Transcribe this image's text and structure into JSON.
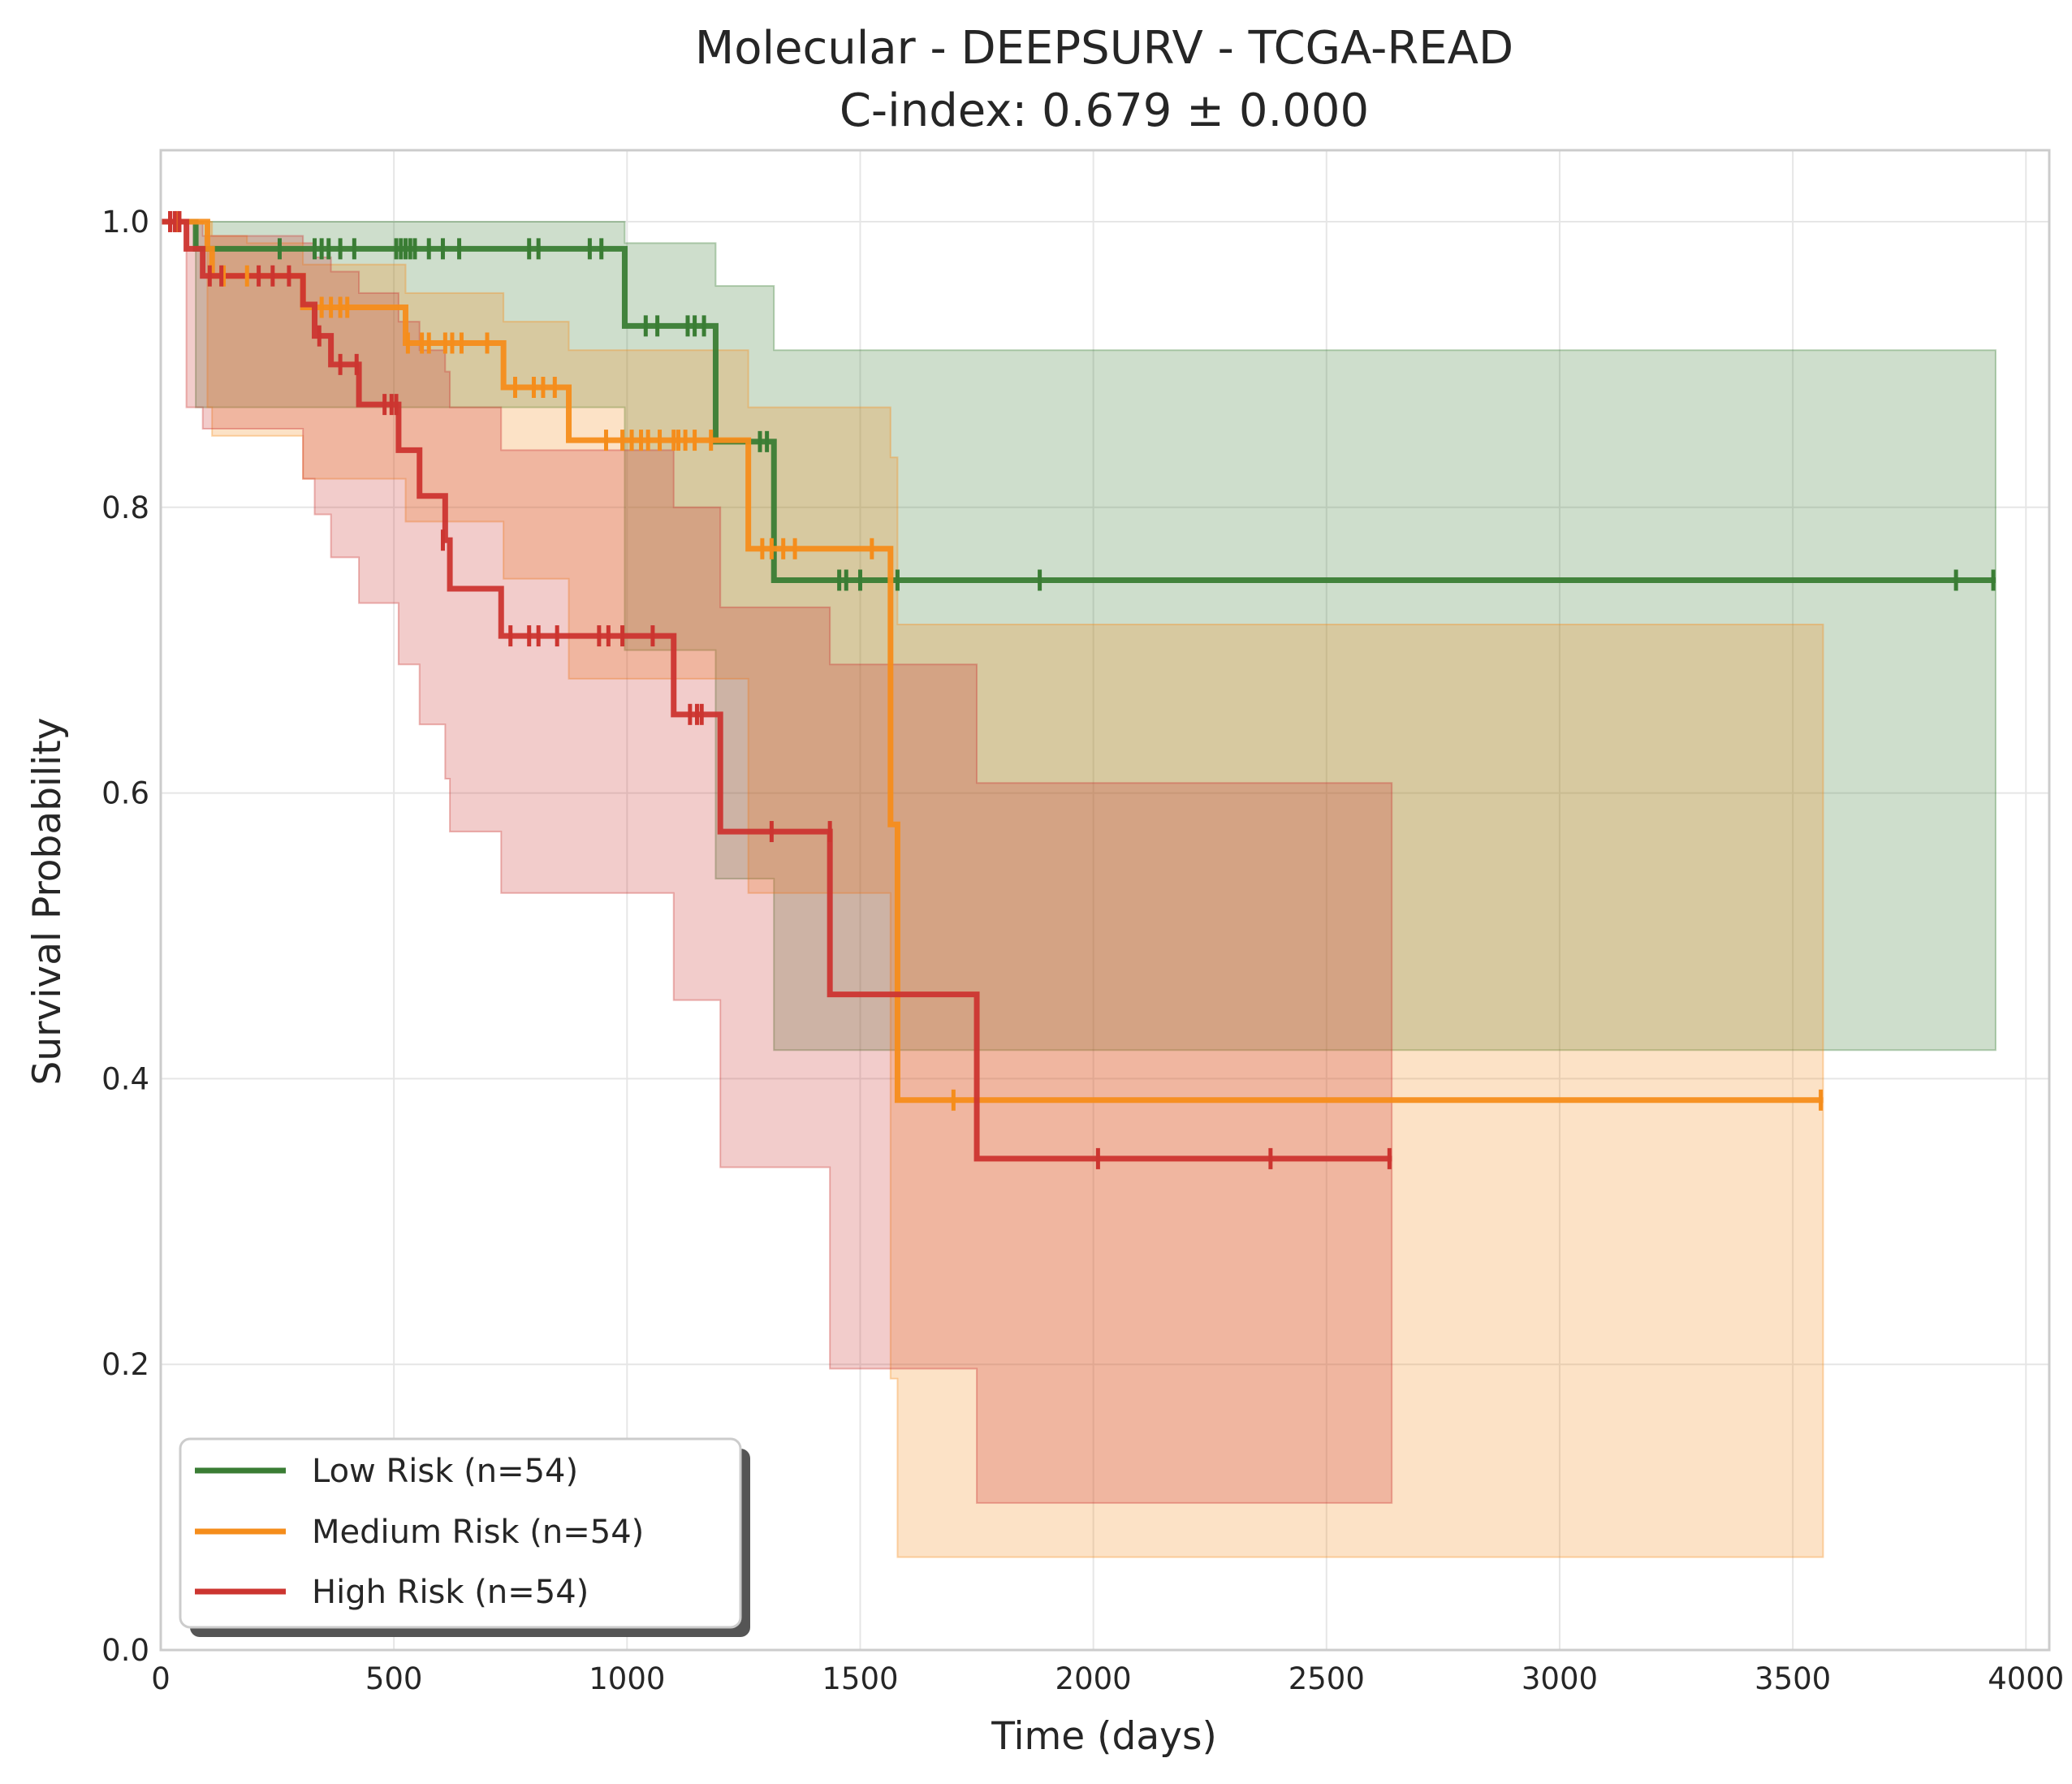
{
  "chart_data": {
    "type": "line",
    "title": "Molecular - DEEPSURV - TCGA-READ",
    "subtitle": "C-index: 0.679 ± 0.000",
    "xlabel": "Time (days)",
    "ylabel": "Survival Probability",
    "xlim": [
      0,
      4050
    ],
    "ylim": [
      0,
      1.05
    ],
    "xticks": [
      0,
      500,
      1000,
      1500,
      2000,
      2500,
      3000,
      3500,
      4000
    ],
    "yticks": [
      0.0,
      0.2,
      0.4,
      0.6,
      0.8,
      1.0
    ],
    "xtick_labels": [
      "0",
      "500",
      "1000",
      "1500",
      "2000",
      "2500",
      "3000",
      "3500",
      "4000"
    ],
    "ytick_labels": [
      "0.0",
      "0.2",
      "0.4",
      "0.6",
      "0.8",
      "1.0"
    ],
    "grid": true,
    "legend_position": "lower-left",
    "series": [
      {
        "name": "Low Risk (n=54)",
        "color": "#3a7d34",
        "steps": [
          [
            0,
            1.0
          ],
          [
            75,
            0.981
          ],
          [
            995,
            0.927
          ],
          [
            1190,
            0.846
          ],
          [
            1315,
            0.749
          ],
          [
            3935,
            0.749
          ]
        ],
        "ci": [
          [
            0,
            1.0,
            1.0
          ],
          [
            75,
            1.0,
            0.87
          ],
          [
            995,
            0.985,
            0.7
          ],
          [
            1190,
            0.955,
            0.54
          ],
          [
            1315,
            0.91,
            0.42
          ],
          [
            3935,
            0.91,
            0.42
          ]
        ],
        "censored": [
          [
            255,
            0.981
          ],
          [
            330,
            0.981
          ],
          [
            345,
            0.981
          ],
          [
            360,
            0.981
          ],
          [
            385,
            0.981
          ],
          [
            415,
            0.981
          ],
          [
            505,
            0.981
          ],
          [
            515,
            0.981
          ],
          [
            525,
            0.981
          ],
          [
            535,
            0.981
          ],
          [
            545,
            0.981
          ],
          [
            575,
            0.981
          ],
          [
            605,
            0.981
          ],
          [
            640,
            0.981
          ],
          [
            790,
            0.981
          ],
          [
            810,
            0.981
          ],
          [
            920,
            0.981
          ],
          [
            945,
            0.981
          ],
          [
            1040,
            0.927
          ],
          [
            1065,
            0.927
          ],
          [
            1130,
            0.927
          ],
          [
            1145,
            0.927
          ],
          [
            1165,
            0.927
          ],
          [
            1285,
            0.846
          ],
          [
            1300,
            0.846
          ],
          [
            1455,
            0.749
          ],
          [
            1470,
            0.749
          ],
          [
            1500,
            0.749
          ],
          [
            1580,
            0.749
          ],
          [
            1885,
            0.749
          ],
          [
            3850,
            0.749
          ],
          [
            3930,
            0.749
          ]
        ]
      },
      {
        "name": "Medium Risk (n=54)",
        "color": "#f58d1b",
        "steps": [
          [
            0,
            1.0
          ],
          [
            100,
            0.981
          ],
          [
            110,
            0.962
          ],
          [
            185,
            0.962
          ],
          [
            305,
            0.94
          ],
          [
            525,
            0.915
          ],
          [
            735,
            0.884
          ],
          [
            875,
            0.847
          ],
          [
            1260,
            0.771
          ],
          [
            1565,
            0.578
          ],
          [
            1580,
            0.385
          ],
          [
            3565,
            0.385
          ]
        ],
        "ci": [
          [
            0,
            1.0,
            1.0
          ],
          [
            100,
            1.0,
            0.87
          ],
          [
            110,
            0.99,
            0.85
          ],
          [
            185,
            0.985,
            0.85
          ],
          [
            305,
            0.97,
            0.82
          ],
          [
            525,
            0.95,
            0.79
          ],
          [
            735,
            0.93,
            0.75
          ],
          [
            875,
            0.91,
            0.68
          ],
          [
            1260,
            0.87,
            0.53
          ],
          [
            1565,
            0.835,
            0.19
          ],
          [
            1580,
            0.718,
            0.065
          ],
          [
            3565,
            0.718,
            0.065
          ]
        ],
        "censored": [
          [
            35,
            1.0
          ],
          [
            135,
            0.962
          ],
          [
            185,
            0.962
          ],
          [
            345,
            0.94
          ],
          [
            365,
            0.94
          ],
          [
            385,
            0.94
          ],
          [
            400,
            0.94
          ],
          [
            530,
            0.915
          ],
          [
            560,
            0.915
          ],
          [
            575,
            0.915
          ],
          [
            610,
            0.915
          ],
          [
            625,
            0.915
          ],
          [
            645,
            0.915
          ],
          [
            700,
            0.915
          ],
          [
            760,
            0.884
          ],
          [
            800,
            0.884
          ],
          [
            820,
            0.884
          ],
          [
            845,
            0.884
          ],
          [
            955,
            0.847
          ],
          [
            990,
            0.847
          ],
          [
            1010,
            0.847
          ],
          [
            1030,
            0.847
          ],
          [
            1045,
            0.847
          ],
          [
            1070,
            0.847
          ],
          [
            1100,
            0.847
          ],
          [
            1110,
            0.847
          ],
          [
            1125,
            0.847
          ],
          [
            1145,
            0.847
          ],
          [
            1180,
            0.847
          ],
          [
            1290,
            0.771
          ],
          [
            1310,
            0.771
          ],
          [
            1335,
            0.771
          ],
          [
            1360,
            0.771
          ],
          [
            1525,
            0.771
          ],
          [
            1700,
            0.385
          ],
          [
            3560,
            0.385
          ]
        ]
      },
      {
        "name": "High Risk (n=54)",
        "color": "#cc3530",
        "steps": [
          [
            0,
            1.0
          ],
          [
            55,
            0.981
          ],
          [
            90,
            0.962
          ],
          [
            305,
            0.942
          ],
          [
            330,
            0.92
          ],
          [
            365,
            0.9
          ],
          [
            425,
            0.872
          ],
          [
            510,
            0.84
          ],
          [
            555,
            0.808
          ],
          [
            610,
            0.777
          ],
          [
            620,
            0.743
          ],
          [
            730,
            0.71
          ],
          [
            1100,
            0.655
          ],
          [
            1200,
            0.573
          ],
          [
            1435,
            0.459
          ],
          [
            1750,
            0.344
          ],
          [
            2640,
            0.344
          ]
        ],
        "ci": [
          [
            0,
            1.0,
            1.0
          ],
          [
            55,
            1.0,
            0.87
          ],
          [
            90,
            0.99,
            0.855
          ],
          [
            305,
            0.985,
            0.82
          ],
          [
            330,
            0.975,
            0.795
          ],
          [
            365,
            0.965,
            0.765
          ],
          [
            425,
            0.95,
            0.733
          ],
          [
            510,
            0.93,
            0.69
          ],
          [
            555,
            0.91,
            0.648
          ],
          [
            610,
            0.895,
            0.61
          ],
          [
            620,
            0.87,
            0.573
          ],
          [
            730,
            0.84,
            0.53
          ],
          [
            1100,
            0.8,
            0.455
          ],
          [
            1200,
            0.73,
            0.338
          ],
          [
            1435,
            0.69,
            0.197
          ],
          [
            1750,
            0.607,
            0.103
          ],
          [
            2640,
            0.607,
            0.103
          ]
        ],
        "censored": [
          [
            20,
            1.0
          ],
          [
            30,
            1.0
          ],
          [
            40,
            1.0
          ],
          [
            105,
            0.962
          ],
          [
            130,
            0.962
          ],
          [
            210,
            0.962
          ],
          [
            240,
            0.962
          ],
          [
            275,
            0.962
          ],
          [
            340,
            0.92
          ],
          [
            385,
            0.9
          ],
          [
            420,
            0.9
          ],
          [
            480,
            0.872
          ],
          [
            495,
            0.872
          ],
          [
            505,
            0.872
          ],
          [
            605,
            0.777
          ],
          [
            750,
            0.71
          ],
          [
            790,
            0.71
          ],
          [
            810,
            0.71
          ],
          [
            850,
            0.71
          ],
          [
            940,
            0.71
          ],
          [
            960,
            0.71
          ],
          [
            990,
            0.71
          ],
          [
            1055,
            0.71
          ],
          [
            1135,
            0.655
          ],
          [
            1150,
            0.655
          ],
          [
            1160,
            0.655
          ],
          [
            1310,
            0.573
          ],
          [
            1435,
            0.573
          ],
          [
            2010,
            0.344
          ],
          [
            2380,
            0.344
          ],
          [
            2635,
            0.344
          ]
        ]
      }
    ]
  }
}
